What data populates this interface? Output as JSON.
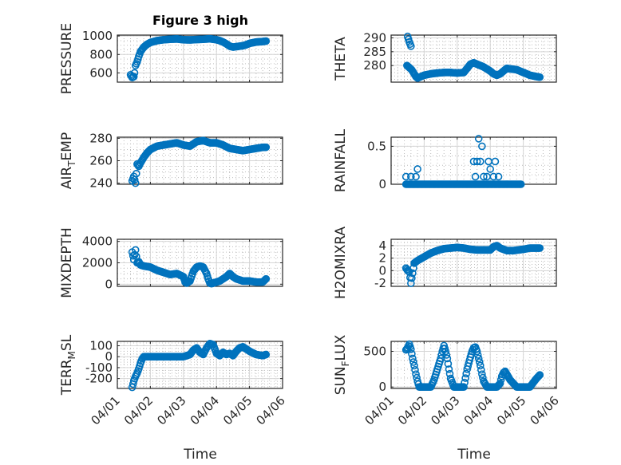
{
  "chart_data": {
    "type": "scatter",
    "title": "Figure 3 high",
    "xlabel": "Time",
    "x_tick_labels": [
      "04/01",
      "04/02",
      "04/03",
      "04/04",
      "04/05",
      "04/06"
    ],
    "x_range_days": [
      1,
      6
    ],
    "marker": "circle-open",
    "color": "#0072BD",
    "grid": true,
    "subplots": [
      {
        "id": "pressure",
        "ylabel": "PRESSURE",
        "ylim": [
          500,
          1010
        ],
        "yticks": [
          600,
          800,
          1000
        ],
        "x": [
          1.4,
          1.45,
          1.5,
          1.52,
          1.55,
          1.6,
          1.65,
          1.7,
          1.8,
          1.9,
          2.0,
          2.2,
          2.4,
          2.6,
          2.8,
          3.0,
          3.2,
          3.4,
          3.6,
          3.8,
          4.0,
          4.1,
          4.2,
          4.3,
          4.4,
          4.5,
          4.6,
          4.7,
          4.8,
          4.9,
          5.0,
          5.2,
          5.4,
          5.5
        ],
        "y": [
          580,
          550,
          560,
          600,
          680,
          720,
          780,
          830,
          880,
          910,
          930,
          950,
          960,
          965,
          968,
          960,
          958,
          962,
          965,
          970,
          960,
          950,
          935,
          915,
          890,
          880,
          885,
          890,
          895,
          905,
          920,
          935,
          940,
          945
        ]
      },
      {
        "id": "theta",
        "ylabel": "THETA",
        "ylim": [
          274,
          291
        ],
        "yticks": [
          280,
          285,
          290
        ],
        "x": [
          1.5,
          1.55,
          1.6,
          1.48,
          1.62,
          1.7,
          1.75,
          1.8,
          1.9,
          2.0,
          2.2,
          2.4,
          2.6,
          2.8,
          3.0,
          3.2,
          3.3,
          3.4,
          3.5,
          3.6,
          3.8,
          4.0,
          4.1,
          4.2,
          4.3,
          4.4,
          4.5,
          4.6,
          4.8,
          5.0,
          5.2,
          5.4,
          5.5
        ],
        "y": [
          290.5,
          288.5,
          287,
          280,
          278.5,
          277,
          276,
          275.5,
          276,
          276.5,
          277,
          277.3,
          277.5,
          277.5,
          277.3,
          277.5,
          279,
          280.5,
          281,
          280.5,
          279.5,
          278,
          277,
          276.5,
          277,
          278,
          279,
          278.8,
          278.5,
          277.5,
          276.5,
          276,
          275.8
        ]
      },
      {
        "id": "air_temp",
        "ylabel": "AIR_TEMP",
        "ylabel_main": "AIR",
        "ylabel_sub": "T",
        "ylabel_rest": "EMP",
        "ylim": [
          239,
          281
        ],
        "yticks": [
          240,
          260,
          280
        ],
        "x": [
          1.45,
          1.5,
          1.55,
          1.6,
          1.65,
          1.7,
          1.8,
          1.9,
          2.0,
          2.2,
          2.4,
          2.6,
          2.8,
          3.0,
          3.2,
          3.4,
          3.6,
          3.8,
          4.0,
          4.2,
          4.4,
          4.6,
          4.8,
          5.0,
          5.2,
          5.4,
          5.5
        ],
        "y": [
          242,
          246,
          240,
          257,
          255,
          258,
          263,
          267,
          270,
          273,
          274,
          275,
          276,
          274,
          273,
          277,
          278,
          276,
          276,
          274,
          271,
          270,
          269,
          270,
          271,
          272,
          272
        ]
      },
      {
        "id": "rainfall",
        "ylabel": "RAINFALL",
        "ylim": [
          0,
          0.62
        ],
        "yticks": [
          0,
          0.5
        ],
        "x": [
          1.0,
          1.2,
          1.4,
          1.45,
          1.6,
          1.75,
          1.8,
          1.9,
          2.0,
          2.5,
          3.0,
          3.4,
          3.5,
          3.55,
          3.6,
          3.65,
          3.7,
          3.75,
          3.8,
          3.85,
          3.9,
          3.95,
          4.0,
          4.05,
          4.1,
          4.15,
          4.2,
          4.25,
          4.3,
          4.35,
          4.4,
          4.45,
          4.5,
          4.6,
          4.7,
          4.8,
          4.85
        ],
        "y": [
          0,
          0,
          0,
          0.1,
          0.1,
          0.1,
          0.2,
          0,
          0,
          0,
          0,
          0,
          0.3,
          0.1,
          0.3,
          0.6,
          0.3,
          0.5,
          0.1,
          0,
          0.1,
          0.3,
          0.2,
          0,
          0.1,
          0.3,
          0,
          0.1,
          0,
          0,
          0,
          0,
          0,
          0,
          0,
          0,
          0
        ]
      },
      {
        "id": "mixdepth",
        "ylabel": "MIXDEPTH",
        "ylim": [
          -200,
          4200
        ],
        "yticks": [
          0,
          2000,
          4000
        ],
        "x": [
          1.45,
          1.5,
          1.55,
          1.6,
          1.65,
          1.7,
          1.8,
          2.0,
          2.2,
          2.4,
          2.6,
          2.8,
          3.0,
          3.05,
          3.1,
          3.2,
          3.3,
          3.4,
          3.5,
          3.6,
          3.7,
          3.75,
          3.8,
          3.85,
          3.9,
          4.0,
          4.1,
          4.2,
          4.3,
          4.4,
          4.5,
          4.6,
          4.7,
          4.8,
          5.0,
          5.2,
          5.4,
          5.5
        ],
        "y": [
          3000,
          2300,
          3200,
          2000,
          2100,
          1800,
          1700,
          1600,
          1300,
          1100,
          900,
          1000,
          700,
          200,
          100,
          300,
          1200,
          1600,
          1700,
          1600,
          1000,
          500,
          100,
          50,
          100,
          200,
          300,
          500,
          700,
          1000,
          700,
          500,
          400,
          300,
          300,
          200,
          200,
          500
        ]
      },
      {
        "id": "h2omixra",
        "ylabel": "H2OMIXRA",
        "ylim": [
          -2.5,
          5
        ],
        "yticks": [
          -2,
          0,
          2,
          4
        ],
        "x": [
          1.45,
          1.5,
          1.55,
          1.6,
          1.7,
          1.8,
          2.0,
          2.2,
          2.4,
          2.6,
          2.8,
          3.0,
          3.2,
          3.4,
          3.6,
          3.8,
          4.0,
          4.1,
          4.2,
          4.3,
          4.5,
          4.7,
          5.0,
          5.2,
          5.4,
          5.5
        ],
        "y": [
          0.4,
          0,
          -0.2,
          -2,
          1.2,
          1.6,
          2.2,
          2.8,
          3.2,
          3.5,
          3.6,
          3.7,
          3.6,
          3.4,
          3.3,
          3.3,
          3.3,
          3.8,
          4.0,
          3.6,
          3.2,
          3.2,
          3.4,
          3.6,
          3.6,
          3.6
        ]
      },
      {
        "id": "terr_msl",
        "ylabel": "TERR_MSL",
        "ylabel_main": "TERR",
        "ylabel_sub": "M",
        "ylabel_rest": "SL",
        "ylim": [
          -290,
          140
        ],
        "yticks": [
          -200,
          -100,
          0,
          100
        ],
        "x": [
          1.45,
          1.5,
          1.55,
          1.6,
          1.65,
          1.7,
          1.75,
          1.8,
          1.9,
          2.0,
          2.2,
          2.4,
          2.6,
          2.8,
          3.0,
          3.2,
          3.3,
          3.4,
          3.5,
          3.6,
          3.7,
          3.8,
          3.9,
          4.0,
          4.1,
          4.2,
          4.3,
          4.4,
          4.5,
          4.6,
          4.7,
          4.8,
          5.0,
          5.2,
          5.4,
          5.5
        ],
        "y": [
          -280,
          -220,
          -180,
          -150,
          -110,
          -60,
          -20,
          0,
          0,
          0,
          0,
          0,
          0,
          0,
          0,
          20,
          60,
          80,
          40,
          20,
          80,
          120,
          110,
          30,
          10,
          40,
          20,
          30,
          10,
          50,
          80,
          90,
          50,
          20,
          10,
          20
        ]
      },
      {
        "id": "sun_flux",
        "ylabel": "SUN_FLUX",
        "ylabel_main": "SUN",
        "ylabel_sub": "F",
        "ylabel_rest": "LUX",
        "ylim": [
          -20,
          640
        ],
        "yticks": [
          0,
          500
        ],
        "x": [
          1.45,
          1.5,
          1.55,
          1.6,
          1.65,
          1.7,
          1.75,
          1.8,
          1.85,
          1.9,
          2.0,
          2.2,
          2.3,
          2.4,
          2.5,
          2.55,
          2.6,
          2.65,
          2.7,
          2.75,
          2.8,
          2.9,
          3.0,
          3.2,
          3.3,
          3.4,
          3.45,
          3.5,
          3.55,
          3.6,
          3.65,
          3.7,
          3.75,
          3.8,
          3.9,
          4.0,
          4.2,
          4.3,
          4.35,
          4.4,
          4.45,
          4.5,
          4.6,
          4.7,
          4.8,
          5.0,
          5.2,
          5.3,
          5.4,
          5.5
        ],
        "y": [
          520,
          550,
          600,
          530,
          400,
          300,
          180,
          80,
          0,
          0,
          0,
          0,
          100,
          250,
          400,
          500,
          580,
          500,
          400,
          250,
          120,
          0,
          0,
          0,
          250,
          420,
          500,
          550,
          560,
          500,
          400,
          300,
          180,
          80,
          0,
          0,
          0,
          50,
          150,
          200,
          220,
          180,
          100,
          50,
          0,
          0,
          0,
          60,
          120,
          170
        ]
      }
    ]
  }
}
